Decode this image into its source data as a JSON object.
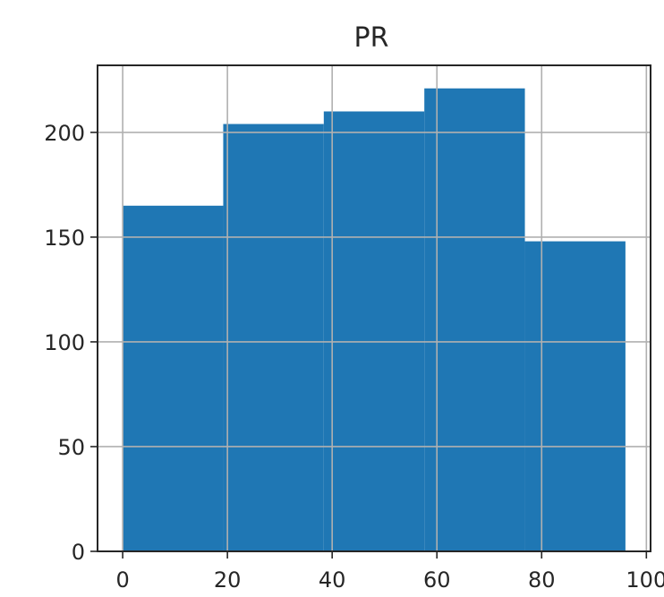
{
  "chart_data": {
    "type": "bar",
    "title": "PR",
    "xlabel": "",
    "ylabel": "",
    "bins": [
      {
        "x0": 0,
        "x1": 19.2,
        "value": 165
      },
      {
        "x0": 19.2,
        "x1": 38.4,
        "value": 204
      },
      {
        "x0": 38.4,
        "x1": 57.6,
        "value": 210
      },
      {
        "x0": 57.6,
        "x1": 76.8,
        "value": 221
      },
      {
        "x0": 76.8,
        "x1": 96,
        "value": 148
      }
    ],
    "xlim": [
      -4.8,
      100.8
    ],
    "ylim": [
      0,
      232
    ],
    "xticks": [
      0,
      20,
      40,
      60,
      80,
      100
    ],
    "yticks": [
      0,
      50,
      100,
      150,
      200
    ],
    "grid": true,
    "bar_color": "#1f77b4",
    "grid_color": "#b0b0b0"
  }
}
